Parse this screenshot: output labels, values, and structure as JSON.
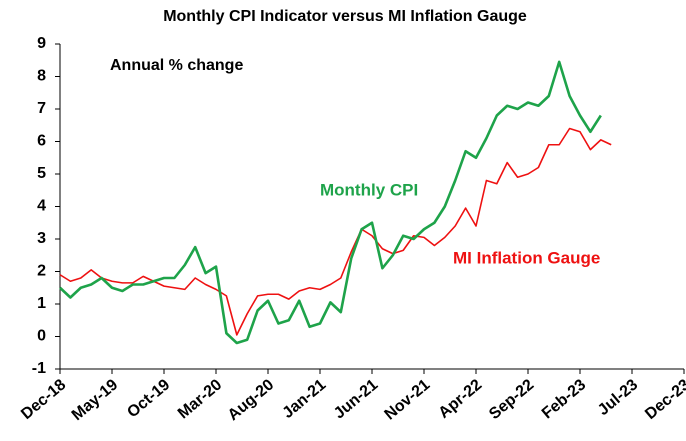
{
  "chart_data": {
    "type": "line",
    "title": "Monthly CPI Indicator versus MI Inflation Gauge",
    "annotations": [
      "Annual % change",
      "Monthly CPI",
      "MI Inflation Gauge"
    ],
    "categories": [
      "Dec-18",
      null,
      null,
      null,
      null,
      "May-19",
      null,
      null,
      null,
      null,
      "Oct-19",
      null,
      null,
      null,
      null,
      "Mar-20",
      null,
      null,
      null,
      null,
      "Aug-20",
      null,
      null,
      null,
      null,
      "Jan-21",
      null,
      null,
      null,
      null,
      "Jun-21",
      null,
      null,
      null,
      null,
      "Nov-21",
      null,
      null,
      null,
      null,
      "Apr-22",
      null,
      null,
      null,
      null,
      "Sep-22",
      null,
      null,
      null,
      null,
      "Feb-23",
      null,
      null,
      null,
      null,
      "Jul-23",
      null,
      null,
      null,
      null,
      "Dec-23"
    ],
    "series": [
      {
        "name": "Monthly CPI",
        "color": "#1ea34a",
        "values": [
          1.5,
          1.2,
          1.5,
          1.6,
          1.8,
          1.5,
          1.4,
          1.6,
          1.6,
          1.7,
          1.8,
          1.8,
          2.2,
          2.75,
          1.95,
          2.15,
          0.1,
          -0.2,
          -0.1,
          0.8,
          1.1,
          0.4,
          0.5,
          1.1,
          0.3,
          0.4,
          1.05,
          0.75,
          2.4,
          3.3,
          3.5,
          2.1,
          2.5,
          3.1,
          3.0,
          3.3,
          3.5,
          4.0,
          4.8,
          5.7,
          5.5,
          6.1,
          6.8,
          7.1,
          7.0,
          7.2,
          7.1,
          7.4,
          8.45,
          7.4,
          6.8,
          6.3,
          6.8,
          null,
          null,
          null,
          null,
          null,
          null,
          null,
          null
        ]
      },
      {
        "name": "MI Inflation Gauge",
        "color": "#ee1111",
        "values": [
          1.9,
          1.7,
          1.8,
          2.05,
          1.8,
          1.7,
          1.65,
          1.65,
          1.85,
          1.7,
          1.55,
          1.5,
          1.45,
          1.8,
          1.6,
          1.45,
          1.25,
          0.05,
          0.7,
          1.25,
          1.3,
          1.3,
          1.15,
          1.4,
          1.5,
          1.45,
          1.6,
          1.8,
          2.6,
          3.3,
          3.1,
          2.7,
          2.55,
          2.65,
          3.1,
          3.05,
          2.8,
          3.05,
          3.4,
          3.95,
          3.4,
          4.8,
          4.7,
          5.35,
          4.9,
          5.0,
          5.2,
          5.9,
          5.9,
          6.4,
          6.3,
          5.75,
          6.05,
          5.9,
          null,
          null,
          null,
          null,
          null,
          null,
          null
        ]
      }
    ],
    "ylim": [
      -1,
      9
    ],
    "yticks": [
      -1,
      0,
      1,
      2,
      3,
      4,
      5,
      6,
      7,
      8,
      9
    ],
    "grid": false
  }
}
